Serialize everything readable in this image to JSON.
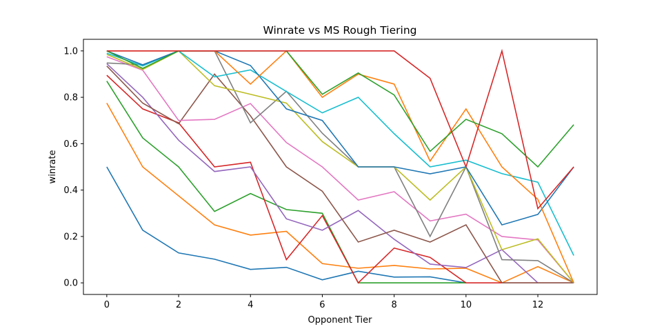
{
  "chart_data": {
    "type": "line",
    "title": "Winrate vs MS Rough Tiering",
    "xlabel": "Opponent Tier",
    "ylabel": "winrate",
    "xlim": [
      -0.65,
      13.65
    ],
    "ylim": [
      -0.05,
      1.05
    ],
    "xticks": [
      0,
      2,
      4,
      6,
      8,
      10,
      12
    ],
    "yticks": [
      0.0,
      0.2,
      0.4,
      0.6,
      0.8,
      1.0
    ],
    "ytick_labels": [
      "0.0",
      "0.2",
      "0.4",
      "0.6",
      "0.8",
      "1.0"
    ],
    "grid": false,
    "legend": "none",
    "series": [
      {
        "color": "#1f77b4",
        "x": [
          0,
          1,
          2,
          3,
          4,
          5,
          6,
          7,
          8,
          9,
          10
        ],
        "values": [
          0.5,
          0.227,
          0.129,
          0.102,
          0.058,
          0.067,
          0.013,
          0.05,
          0.025,
          0.026,
          0.0
        ]
      },
      {
        "color": "#ff7f0e",
        "x": [
          0,
          1,
          2,
          3,
          4,
          5,
          6,
          7,
          8,
          9,
          10,
          11,
          12,
          13
        ],
        "values": [
          0.775,
          0.5,
          0.375,
          0.25,
          0.206,
          0.222,
          0.083,
          0.063,
          0.075,
          0.06,
          0.063,
          0.0,
          0.07,
          0.0
        ]
      },
      {
        "color": "#2ca02c",
        "x": [
          0,
          1,
          2,
          3,
          4,
          5,
          6,
          7,
          8,
          9,
          10
        ],
        "values": [
          0.87,
          0.625,
          0.5,
          0.308,
          0.385,
          0.316,
          0.3,
          0.0,
          0.0,
          0.0,
          0.0
        ]
      },
      {
        "color": "#d62728",
        "x": [
          0,
          1,
          2,
          3,
          4,
          5,
          6,
          7,
          8,
          9,
          10,
          11,
          12,
          13
        ],
        "values": [
          0.895,
          0.75,
          0.69,
          0.5,
          0.52,
          0.1,
          0.29,
          0.0,
          0.15,
          0.11,
          0.0,
          0.0,
          0.0,
          0.0
        ]
      },
      {
        "color": "#9467bd",
        "x": [
          0,
          1,
          2,
          3,
          4,
          5,
          6,
          7,
          8,
          9,
          10,
          11,
          12
        ],
        "values": [
          0.945,
          0.8,
          0.615,
          0.48,
          0.5,
          0.276,
          0.227,
          0.312,
          0.188,
          0.081,
          0.066,
          0.143,
          0.0
        ]
      },
      {
        "color": "#8c564b",
        "x": [
          0,
          1,
          2,
          3,
          4,
          5,
          6,
          7,
          8,
          9,
          10,
          11,
          12,
          13
        ],
        "values": [
          0.935,
          0.775,
          0.686,
          0.9,
          0.72,
          0.5,
          0.395,
          0.176,
          0.227,
          0.176,
          0.25,
          0.0,
          0.0,
          0.0
        ]
      },
      {
        "color": "#e377c2",
        "x": [
          0,
          1,
          2,
          3,
          4,
          5,
          6,
          7,
          8,
          9,
          10,
          11,
          12,
          13
        ],
        "values": [
          0.975,
          0.917,
          0.7,
          0.705,
          0.773,
          0.605,
          0.5,
          0.357,
          0.393,
          0.267,
          0.296,
          0.2,
          0.185,
          0.0
        ]
      },
      {
        "color": "#7f7f7f",
        "x": [
          0,
          1,
          2,
          3,
          4,
          5,
          6,
          7,
          8,
          9,
          10,
          11,
          12,
          13
        ],
        "values": [
          0.948,
          0.94,
          1.0,
          1.0,
          0.69,
          0.826,
          0.645,
          0.5,
          0.5,
          0.2,
          0.5,
          0.1,
          0.096,
          0.0
        ]
      },
      {
        "color": "#bcbd22",
        "x": [
          0,
          1,
          2,
          3,
          4,
          5,
          6,
          7,
          8,
          9,
          10,
          11,
          12,
          13
        ],
        "values": [
          0.985,
          0.92,
          1.0,
          0.85,
          0.813,
          0.775,
          0.609,
          0.5,
          0.5,
          0.357,
          0.5,
          0.143,
          0.19,
          0.0
        ]
      },
      {
        "color": "#17becf",
        "x": [
          0,
          1,
          2,
          3,
          4,
          5,
          6,
          7,
          8,
          9,
          10,
          11,
          12,
          13
        ],
        "values": [
          0.99,
          0.935,
          1.0,
          0.888,
          0.918,
          0.825,
          0.733,
          0.8,
          0.643,
          0.5,
          0.529,
          0.471,
          0.434,
          0.118
        ]
      },
      {
        "color": "#1f77b4",
        "x": [
          0,
          1,
          2,
          3,
          4,
          5,
          6,
          7,
          8,
          9,
          10,
          11,
          12,
          13
        ],
        "values": [
          1.0,
          0.94,
          1.0,
          1.0,
          0.937,
          0.75,
          0.7,
          0.5,
          0.5,
          0.47,
          0.5,
          0.25,
          0.295,
          0.5
        ]
      },
      {
        "color": "#ff7f0e",
        "x": [
          0,
          1,
          2,
          3,
          4,
          5,
          6,
          7,
          8,
          9,
          10,
          11,
          12,
          13
        ],
        "values": [
          1.0,
          1.0,
          1.0,
          1.0,
          0.857,
          1.0,
          0.8,
          0.9,
          0.857,
          0.525,
          0.75,
          0.5,
          0.36,
          0.0
        ]
      },
      {
        "color": "#2ca02c",
        "x": [
          0,
          1,
          2,
          3,
          4,
          5,
          6,
          7,
          8,
          9,
          10,
          11,
          12,
          13
        ],
        "values": [
          1.0,
          0.925,
          1.0,
          1.0,
          1.0,
          1.0,
          0.813,
          0.905,
          0.81,
          0.567,
          0.705,
          0.643,
          0.5,
          0.682
        ]
      },
      {
        "color": "#d62728",
        "x": [
          0,
          1,
          2,
          3,
          4,
          5,
          6,
          7,
          8,
          9,
          10,
          11,
          12,
          13
        ],
        "values": [
          1.0,
          1.0,
          1.0,
          1.0,
          1.0,
          1.0,
          1.0,
          1.0,
          1.0,
          0.882,
          0.5,
          1.0,
          0.32,
          0.5
        ]
      }
    ]
  }
}
